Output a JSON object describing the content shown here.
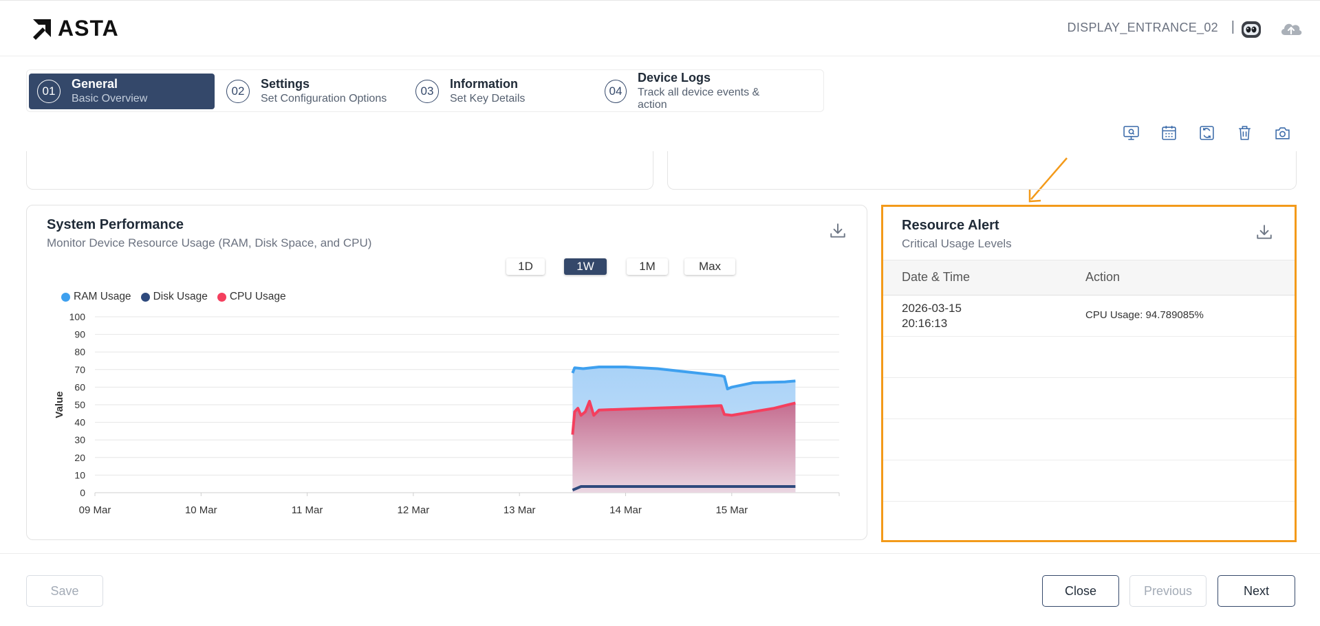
{
  "header": {
    "brand": "ASTA",
    "device_name": "DISPLAY_ENTRANCE_02",
    "separator": "|",
    "icons": [
      "robot-avatar-icon",
      "cloud-upload-icon"
    ]
  },
  "stepper": {
    "steps": [
      {
        "num": "01",
        "title": "General",
        "subtitle": "Basic Overview",
        "active": true
      },
      {
        "num": "02",
        "title": "Settings",
        "subtitle": "Set Configuration Options",
        "active": false
      },
      {
        "num": "03",
        "title": "Information",
        "subtitle": "Set Key Details",
        "active": false
      },
      {
        "num": "04",
        "title": "Device Logs",
        "subtitle": "Track all device events & action",
        "active": false
      }
    ]
  },
  "toolbar": {
    "icons": [
      "monitor-search-icon",
      "calendar-icon",
      "refresh-icon",
      "trash-icon",
      "camera-icon"
    ]
  },
  "performance": {
    "title": "System Performance",
    "subtitle": "Monitor Device Resource Usage (RAM, Disk Space, and CPU)",
    "ranges": [
      "1D",
      "1W",
      "1M",
      "Max"
    ],
    "active_range": "1W"
  },
  "chart_data": {
    "type": "area",
    "ylabel": "Value",
    "ylim": [
      0,
      100
    ],
    "yticks": [
      0,
      10,
      20,
      30,
      40,
      50,
      60,
      70,
      80,
      90,
      100
    ],
    "xticks": [
      "09 Mar",
      "10 Mar",
      "11 Mar",
      "12 Mar",
      "13 Mar",
      "14 Mar",
      "15 Mar"
    ],
    "x_start": "09 Mar",
    "grid": true,
    "legend_position": "top-left",
    "series": [
      {
        "name": "RAM Usage",
        "color": "#3ea0ef",
        "fill": true,
        "points": [
          [
            4.5,
            68
          ],
          [
            4.52,
            71
          ],
          [
            4.6,
            70.5
          ],
          [
            4.75,
            71.5
          ],
          [
            5.0,
            71.5
          ],
          [
            5.3,
            70.5
          ],
          [
            5.6,
            68.5
          ],
          [
            5.9,
            66.5
          ],
          [
            5.93,
            66
          ],
          [
            5.96,
            59
          ],
          [
            6.0,
            60
          ],
          [
            6.2,
            62.5
          ],
          [
            6.5,
            63
          ],
          [
            6.6,
            63.5
          ]
        ]
      },
      {
        "name": "Disk Usage",
        "color": "#2e4a7d",
        "fill": false,
        "points": [
          [
            4.5,
            1.5
          ],
          [
            4.58,
            3.5
          ],
          [
            5.0,
            3.5
          ],
          [
            5.5,
            3.5
          ],
          [
            6.0,
            3.5
          ],
          [
            6.6,
            3.5
          ]
        ]
      },
      {
        "name": "CPU Usage",
        "color": "#f43f5e",
        "fill": true,
        "points": [
          [
            4.5,
            33
          ],
          [
            4.52,
            46
          ],
          [
            4.55,
            48
          ],
          [
            4.58,
            44
          ],
          [
            4.62,
            46
          ],
          [
            4.66,
            52
          ],
          [
            4.7,
            44
          ],
          [
            4.75,
            47
          ],
          [
            5.0,
            47.5
          ],
          [
            5.5,
            48.5
          ],
          [
            5.9,
            49.5
          ],
          [
            5.93,
            44.5
          ],
          [
            6.0,
            44
          ],
          [
            6.2,
            46
          ],
          [
            6.4,
            48
          ],
          [
            6.6,
            51
          ]
        ]
      }
    ]
  },
  "alert": {
    "title": "Resource Alert",
    "subtitle": "Critical Usage Levels",
    "columns": [
      "Date & Time",
      "Action"
    ],
    "rows": [
      {
        "datetime_line1": "2026-03-15",
        "datetime_line2": "20:16:13",
        "action": "CPU Usage: 94.789085%"
      }
    ]
  },
  "footer": {
    "save": "Save",
    "close": "Close",
    "previous": "Previous",
    "next": "Next"
  },
  "colors": {
    "primary": "#34486a",
    "highlight": "#f39a1a",
    "ram": "#3ea0ef",
    "disk": "#2e4a7d",
    "cpu": "#f43f5e"
  }
}
